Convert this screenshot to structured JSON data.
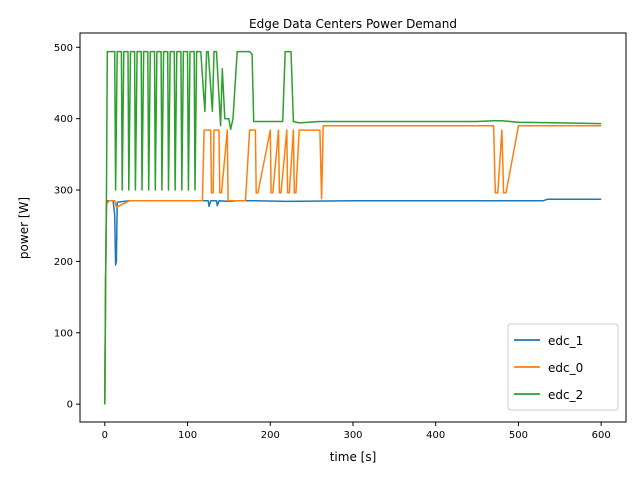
{
  "chart_data": {
    "type": "line",
    "title": "Edge Data Centers Power Demand",
    "xlabel": "time [s]",
    "ylabel": "power [W]",
    "xlim": [
      -30,
      630
    ],
    "ylim": [
      -25,
      520
    ],
    "xticks": [
      0,
      100,
      200,
      300,
      400,
      500,
      600
    ],
    "yticks": [
      0,
      100,
      200,
      300,
      400,
      500
    ],
    "grid": false,
    "legend_position": "lower-right",
    "series": [
      {
        "name": "edc_1",
        "color": "#1f77b4",
        "x": [
          0,
          1,
          2,
          3,
          10,
          12,
          13,
          14,
          15,
          30,
          60,
          100,
          120,
          125,
          126,
          128,
          135,
          136,
          138,
          150,
          160,
          175,
          180,
          220,
          300,
          400,
          500,
          530,
          535,
          600
        ],
        "y": [
          0,
          170,
          280,
          285,
          285,
          265,
          195,
          200,
          283,
          285,
          285,
          285,
          285,
          285,
          277,
          285,
          285,
          278,
          285,
          284,
          285,
          285,
          285,
          284,
          285,
          285,
          285,
          285,
          287,
          287
        ]
      },
      {
        "name": "edc_0",
        "color": "#ff7f0e",
        "x": [
          0,
          1,
          2,
          5,
          12,
          14,
          30,
          60,
          90,
          118,
          120,
          122,
          128,
          129,
          131,
          132,
          138,
          139,
          141,
          148,
          149,
          152,
          170,
          175,
          182,
          183,
          185,
          200,
          201,
          203,
          210,
          211,
          213,
          220,
          221,
          223,
          228,
          229,
          231,
          235,
          245,
          260,
          262,
          264,
          270,
          300,
          350,
          400,
          450,
          470,
          472,
          475,
          480,
          482,
          485,
          500,
          550,
          600
        ],
        "y": [
          0,
          170,
          280,
          285,
          285,
          276,
          285,
          285,
          285,
          285,
          384,
          384,
          384,
          296,
          296,
          384,
          384,
          296,
          296,
          384,
          285,
          285,
          285,
          384,
          384,
          296,
          296,
          384,
          296,
          296,
          384,
          296,
          296,
          384,
          296,
          296,
          384,
          296,
          296,
          384,
          384,
          384,
          288,
          390,
          390,
          390,
          390,
          390,
          390,
          390,
          296,
          296,
          384,
          296,
          296,
          390,
          390,
          390
        ]
      },
      {
        "name": "edc_2",
        "color": "#2ca02c",
        "x": [
          0,
          1,
          2,
          3,
          12,
          13,
          15,
          20,
          21,
          23,
          28,
          29,
          31,
          36,
          37,
          39,
          44,
          45,
          47,
          52,
          53,
          55,
          60,
          61,
          63,
          68,
          69,
          71,
          76,
          77,
          79,
          84,
          85,
          87,
          92,
          93,
          95,
          100,
          101,
          103,
          108,
          109,
          111,
          116,
          118,
          121,
          123,
          125,
          130,
          132,
          135,
          140,
          142,
          145,
          150,
          152,
          155,
          160,
          170,
          175,
          178,
          180,
          185,
          200,
          215,
          218,
          225,
          228,
          235,
          260,
          265,
          300,
          350,
          400,
          450,
          470,
          480,
          500,
          550,
          600
        ],
        "y": [
          0,
          180,
          300,
          494,
          494,
          300,
          494,
          494,
          300,
          494,
          494,
          300,
          494,
          494,
          300,
          494,
          494,
          300,
          494,
          494,
          300,
          494,
          494,
          300,
          494,
          494,
          300,
          494,
          494,
          300,
          494,
          494,
          300,
          494,
          494,
          300,
          494,
          494,
          300,
          494,
          494,
          300,
          494,
          494,
          460,
          410,
          494,
          494,
          410,
          494,
          494,
          390,
          470,
          400,
          400,
          385,
          400,
          494,
          494,
          494,
          490,
          396,
          396,
          396,
          396,
          494,
          494,
          396,
          394,
          396,
          396,
          396,
          396,
          396,
          396,
          397,
          397,
          395,
          394,
          393
        ]
      }
    ]
  }
}
